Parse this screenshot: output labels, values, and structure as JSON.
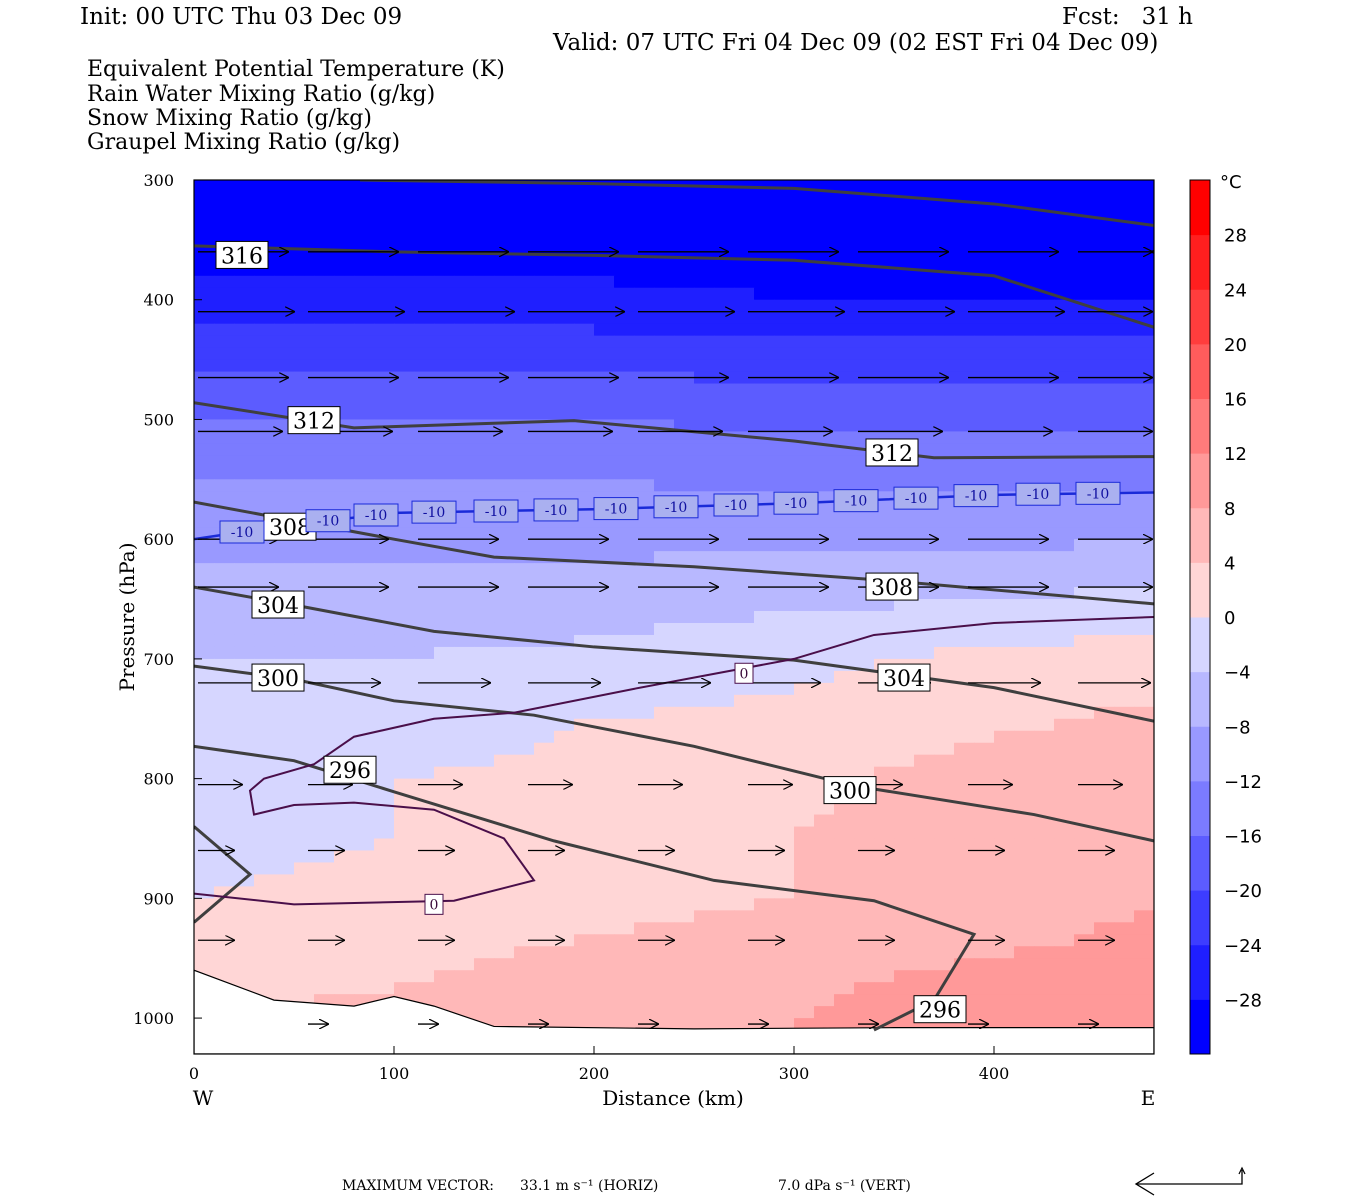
{
  "header": {
    "init": "Init: 00 UTC Thu 03 Dec 09",
    "fcst": "Fcst:   31 h",
    "valid": "Valid: 07 UTC Fri 04 Dec 09 (02 EST Fri 04 Dec 09)"
  },
  "legend": [
    {
      "label": "Equivalent Potential Temperature (K)",
      "color": "#5a5a5a"
    },
    {
      "label": "Rain Water Mixing Ratio (g/kg)",
      "color": "#0a7a0a"
    },
    {
      "label": "Snow Mixing Ratio (g/kg)",
      "color": "#f0915a"
    },
    {
      "label": "Graupel Mixing Ratio (g/kg)",
      "color": "#ee82ee"
    }
  ],
  "chart_data": {
    "type": "cross-section",
    "xlabel": "Distance (km)",
    "ylabel": "Pressure (hPa)",
    "xlim": [
      0,
      480
    ],
    "ylim": [
      1030,
      300
    ],
    "x_ticks": [
      0,
      100,
      200,
      300,
      400
    ],
    "y_ticks": [
      300,
      400,
      500,
      600,
      700,
      800,
      900,
      1000
    ],
    "left_end_label": "W",
    "right_end_label": "E",
    "colorbar": {
      "unit": "°C",
      "range": [
        -32,
        32
      ],
      "step": 4,
      "tick_labels": [
        28,
        24,
        20,
        16,
        12,
        8,
        4,
        0,
        -4,
        -8,
        -12,
        -16,
        -20,
        -24,
        -28
      ]
    },
    "temperature_shading": {
      "x": [
        0,
        100,
        200,
        300,
        400,
        480
      ],
      "p": [
        300,
        350,
        400,
        450,
        500,
        550,
        600,
        650,
        700,
        750,
        800,
        850,
        900,
        950,
        1000
      ],
      "values_c": [
        [
          -31,
          -31,
          -31,
          -31,
          -31,
          -31
        ],
        [
          -30,
          -30,
          -30,
          -30,
          -30,
          -30
        ],
        [
          -27,
          -27,
          -27,
          -28,
          -28,
          -28
        ],
        [
          -21,
          -21,
          -21,
          -22,
          -22,
          -22
        ],
        [
          -16,
          -16,
          -16,
          -17,
          -17,
          -17
        ],
        [
          -12,
          -12,
          -12,
          -13,
          -13,
          -13
        ],
        [
          -9,
          -9,
          -9,
          -9,
          -9,
          -8
        ],
        [
          -6,
          -6,
          -6,
          -5,
          -4,
          -3
        ],
        [
          -4,
          -4,
          -3,
          -1,
          1,
          2
        ],
        [
          -3,
          -2,
          0,
          1,
          3,
          5
        ],
        [
          -1,
          0,
          1,
          3,
          6,
          7
        ],
        [
          -1,
          0,
          2,
          4,
          6,
          8
        ],
        [
          0,
          1,
          2,
          4,
          6,
          8
        ],
        [
          2,
          3,
          5,
          7,
          8,
          9
        ],
        [
          4,
          5,
          7,
          8,
          10,
          10
        ]
      ]
    },
    "theta_e_contours_k": [
      {
        "level": 316,
        "label": "316",
        "points": [
          [
            0,
            355
          ],
          [
            100,
            360
          ],
          [
            200,
            363
          ],
          [
            300,
            367
          ],
          [
            400,
            380
          ],
          [
            480,
            423
          ]
        ],
        "label_at": [
          24,
          363
        ]
      },
      {
        "level": 316,
        "label": "",
        "points": [
          [
            83,
            300
          ],
          [
            200,
            303
          ],
          [
            300,
            307
          ],
          [
            400,
            320
          ],
          [
            480,
            338
          ]
        ]
      },
      {
        "level": 312,
        "label": "312",
        "points": [
          [
            0,
            486
          ],
          [
            80,
            507
          ],
          [
            190,
            501
          ],
          [
            300,
            518
          ],
          [
            370,
            532
          ],
          [
            480,
            531
          ]
        ],
        "label_at": [
          60,
          501
        ]
      },
      {
        "level": 312,
        "label": "312",
        "points": [
          [
            370,
            531
          ]
        ],
        "label_at": [
          349,
          528
        ]
      },
      {
        "level": 308,
        "label": "308",
        "points": [
          [
            0,
            569
          ],
          [
            100,
            600
          ],
          [
            150,
            615
          ],
          [
            250,
            623
          ],
          [
            350,
            635
          ],
          [
            480,
            654
          ]
        ],
        "label_at": [
          48,
          590
        ]
      },
      {
        "level": 308,
        "label": "308",
        "points": [
          [
            350,
            636
          ]
        ],
        "label_at": [
          349,
          640
        ]
      },
      {
        "level": 304,
        "label": "304",
        "points": [
          [
            0,
            640
          ],
          [
            50,
            655
          ],
          [
            120,
            677
          ],
          [
            200,
            690
          ],
          [
            300,
            701
          ],
          [
            400,
            724
          ],
          [
            480,
            752
          ]
        ],
        "label_at": [
          42,
          655
        ]
      },
      {
        "level": 304,
        "label": "304",
        "points": [
          [
            400,
            724
          ]
        ],
        "label_at": [
          355,
          716
        ]
      },
      {
        "level": 300,
        "label": "300",
        "points": [
          [
            0,
            706
          ],
          [
            50,
            717
          ],
          [
            100,
            735
          ],
          [
            170,
            747
          ],
          [
            250,
            773
          ],
          [
            330,
            806
          ],
          [
            420,
            830
          ],
          [
            480,
            852
          ]
        ],
        "label_at": [
          42,
          716
        ]
      },
      {
        "level": 300,
        "label": "300",
        "points": [
          [
            330,
            806
          ]
        ],
        "label_at": [
          328,
          810
        ]
      },
      {
        "level": 296,
        "label": "296",
        "points": [
          [
            0,
            773
          ],
          [
            50,
            785
          ],
          [
            100,
            811
          ],
          [
            180,
            852
          ],
          [
            260,
            885
          ],
          [
            340,
            902
          ],
          [
            390,
            930
          ],
          [
            370,
            985
          ],
          [
            340,
            1010
          ]
        ],
        "label_at": [
          78,
          793
        ]
      },
      {
        "level": 296,
        "label": "296",
        "points": [
          [
            370,
            985
          ]
        ],
        "label_at": [
          373,
          993
        ]
      },
      {
        "level": 296,
        "label": "",
        "points": [
          [
            0,
            840
          ],
          [
            28,
            880
          ],
          [
            0,
            920
          ]
        ]
      }
    ],
    "isotherm_minus10": {
      "label": "-10",
      "points": [
        [
          0,
          600
        ],
        [
          40,
          590
        ],
        [
          100,
          578
        ],
        [
          200,
          575
        ],
        [
          300,
          570
        ],
        [
          400,
          563
        ],
        [
          480,
          561
        ]
      ],
      "label_x": [
        24,
        67,
        91,
        120,
        151,
        181,
        211,
        241,
        271,
        301,
        331,
        361,
        391,
        422,
        452,
        482
      ]
    },
    "zero_isotherm": {
      "label": "0",
      "label_positions": [
        [
          275,
          712
        ],
        [
          120,
          905
        ]
      ],
      "segments": [
        [
          [
            480,
            665
          ],
          [
            400,
            670
          ],
          [
            340,
            680
          ],
          [
            300,
            700
          ],
          [
            220,
            725
          ],
          [
            160,
            745
          ],
          [
            120,
            750
          ],
          [
            80,
            765
          ],
          [
            60,
            788
          ],
          [
            35,
            800
          ],
          [
            28,
            810
          ],
          [
            30,
            830
          ],
          [
            50,
            822
          ],
          [
            80,
            820
          ],
          [
            120,
            826
          ],
          [
            155,
            850
          ],
          [
            170,
            885
          ],
          [
            130,
            902
          ],
          [
            50,
            905
          ],
          [
            0,
            896
          ]
        ]
      ]
    },
    "wind_vectors": [
      {
        "p": 360,
        "x": [
          0,
          55,
          110,
          165,
          220,
          275,
          330,
          385,
          440,
          480
        ],
        "len": 45
      },
      {
        "p": 410,
        "x": [
          0,
          55,
          110,
          165,
          220,
          275,
          330,
          385,
          440
        ],
        "len": 48
      },
      {
        "p": 465,
        "x": [
          0,
          55,
          110,
          165,
          220,
          275,
          330,
          385,
          440
        ],
        "len": 45
      },
      {
        "p": 510,
        "x": [
          0,
          55,
          110,
          165,
          220,
          275,
          330,
          385,
          440
        ],
        "len": 42
      },
      {
        "p": 600,
        "x": [
          0,
          55,
          110,
          165,
          220,
          275,
          330,
          385,
          440
        ],
        "len": 40
      },
      {
        "p": 640,
        "x": [
          0,
          55,
          110,
          165,
          220,
          275,
          330,
          385,
          440
        ],
        "len": 40
      },
      {
        "p": 720,
        "x": [
          0,
          55,
          110,
          165,
          220,
          275,
          330,
          385,
          440
        ],
        "len": 36
      },
      {
        "p": 805,
        "x": [
          0,
          55,
          110,
          165,
          220,
          275,
          330,
          385,
          440
        ],
        "len": 22
      },
      {
        "p": 860,
        "x": [
          0,
          55,
          110,
          165,
          220,
          275,
          330,
          385,
          440
        ],
        "len": 18
      },
      {
        "p": 935,
        "x": [
          0,
          55,
          110,
          165,
          220,
          275,
          330,
          385,
          440
        ],
        "len": 18
      },
      {
        "p": 1005,
        "x": [
          55,
          110,
          165,
          220,
          275,
          330,
          385,
          440
        ],
        "len": 10
      }
    ],
    "terrain": [
      [
        0,
        960
      ],
      [
        40,
        985
      ],
      [
        80,
        990
      ],
      [
        100,
        982
      ],
      [
        120,
        990
      ],
      [
        150,
        1007
      ],
      [
        250,
        1009
      ],
      [
        350,
        1008
      ],
      [
        480,
        1008
      ],
      [
        480,
        1030
      ],
      [
        0,
        1030
      ]
    ]
  },
  "footer": {
    "max_vector_label": "MAXIMUM VECTOR:",
    "horiz": "33.1 m s⁻¹ (HORIZ)",
    "vert": "7.0 dPa s⁻¹ (VERT)"
  }
}
